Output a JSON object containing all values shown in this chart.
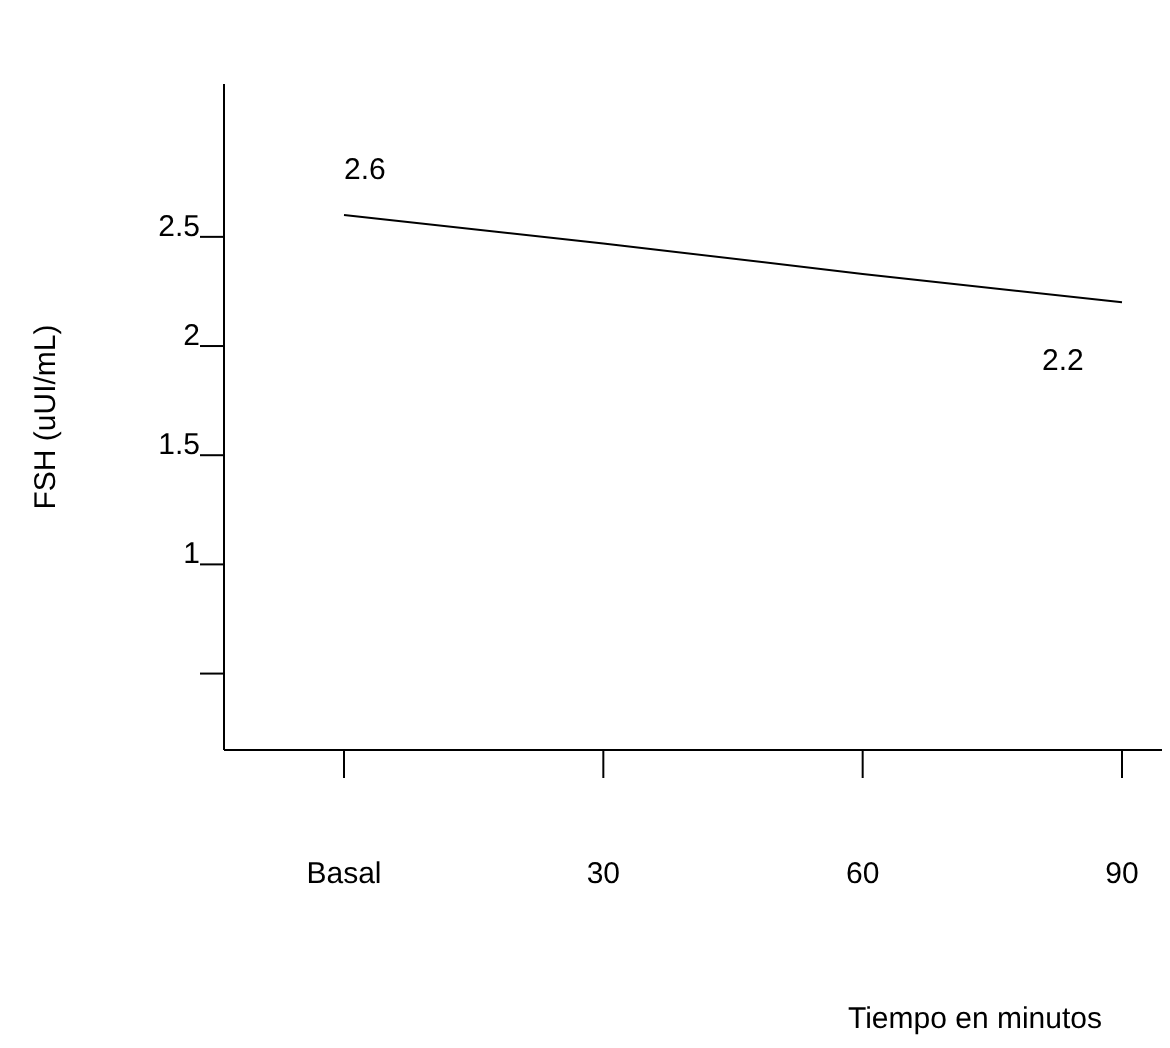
{
  "chart_data": {
    "type": "line",
    "xlabel": "Tiempo en minutos",
    "ylabel": "FSH (uUI/mL)",
    "categories": [
      "Basal",
      "30",
      "60",
      "90"
    ],
    "series": [
      {
        "color": "#000000",
        "values": [
          2.6,
          2.47,
          2.33,
          2.2
        ],
        "value_labels": [
          "2.6",
          null,
          null,
          "2.2"
        ]
      }
    ],
    "ylim": [
      0.15,
      3.2
    ],
    "yticks": [
      {
        "value": 0.5,
        "label": null
      },
      1,
      1.5,
      2,
      2.5
    ],
    "grid": false,
    "legend": false,
    "marker": "none",
    "line_style": "solid"
  }
}
